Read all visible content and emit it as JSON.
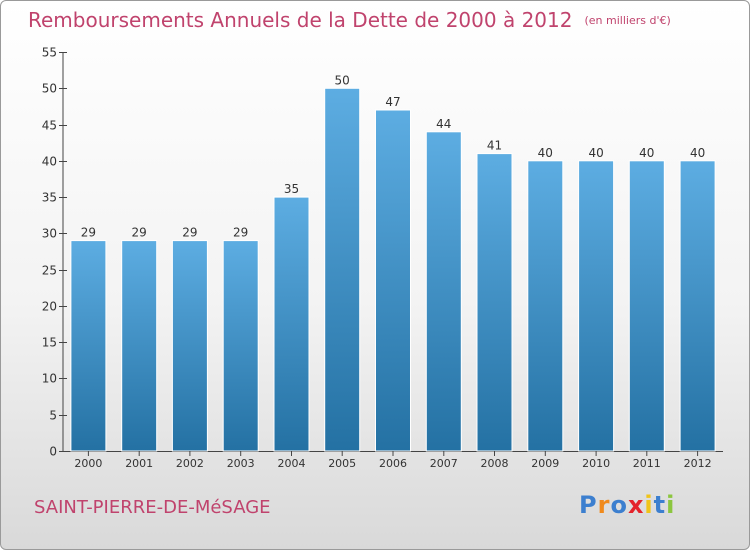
{
  "title": "Remboursements Annuels de la Dette de 2000 à 2012",
  "unit": "(en milliers d'€)",
  "commune": "SAINT-PIERRE-DE-MéSAGE",
  "brand": {
    "letters": [
      "P",
      "r",
      "o",
      "x",
      "i",
      "t",
      "i"
    ],
    "colors": [
      "#3c7fcf",
      "#f08a1c",
      "#3c7fcf",
      "#e4232b",
      "#f0c419",
      "#3c7fcf",
      "#8cc63f"
    ]
  },
  "colors": {
    "bar_light": "#5dade2",
    "bar_dark": "#2471a3",
    "text_accent": "#c0436d"
  },
  "chart_data": {
    "type": "bar",
    "categories": [
      "2000",
      "2001",
      "2002",
      "2003",
      "2004",
      "2005",
      "2006",
      "2007",
      "2008",
      "2009",
      "2010",
      "2011",
      "2012"
    ],
    "values": [
      29,
      29,
      29,
      29,
      35,
      50,
      47,
      44,
      41,
      40,
      40,
      40,
      40
    ],
    "yticks": [
      0,
      5,
      10,
      15,
      20,
      25,
      30,
      35,
      40,
      45,
      50,
      55
    ],
    "ylim": [
      0,
      55
    ],
    "grid": false,
    "data_labels": true
  }
}
